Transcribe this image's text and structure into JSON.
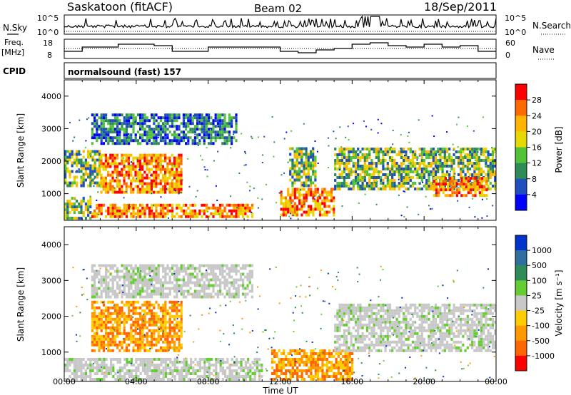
{
  "header": {
    "station": "Saskatoon (fitACF)",
    "beam": "Beam 02",
    "date": "18/Sep/2011"
  },
  "panels": {
    "nsky": {
      "left_label": "N.Sky",
      "right_label": "N.Search",
      "ticks": [
        "10^5",
        "10^0"
      ]
    },
    "freq": {
      "left_label_1": "Freq.",
      "left_label_2": "[MHz]",
      "right_label": "Nave",
      "left_ticks": [
        "18",
        "8"
      ],
      "right_ticks": [
        "60",
        "0"
      ]
    },
    "cpid": {
      "label": "CPID",
      "value": "normalsound (fast) 157"
    }
  },
  "colorbars": {
    "power": {
      "label": "Power [dB]",
      "ticks": [
        "28",
        "24",
        "20",
        "16",
        "12",
        "8",
        "4"
      ],
      "colors": [
        "#ff0000",
        "#ff6a00",
        "#ffb400",
        "#e6d800",
        "#52c237",
        "#2e8b57",
        "#1f4fbf",
        "#0000ff"
      ]
    },
    "velocity": {
      "label": "Velocity [m s⁻¹]",
      "ticks": [
        "1000",
        "500",
        "100",
        "25",
        "-25",
        "-100",
        "-500",
        "-1000"
      ],
      "colors": [
        "#0033cc",
        "#2f6f9f",
        "#2e8b57",
        "#66cc33",
        "#c8c8c8",
        "#ffcc00",
        "#ff9900",
        "#ff6600",
        "#ff0000"
      ]
    }
  },
  "chart_data": [
    {
      "type": "heatmap",
      "name": "Power",
      "ylabel": "Slant Range [km]",
      "yticks": [
        "4000",
        "3000",
        "2000",
        "1000"
      ],
      "ylim": [
        180,
        4500
      ],
      "xlim": [
        0,
        24
      ],
      "xticks": [
        "00:00",
        "04:00",
        "08:00",
        "12:00",
        "16:00",
        "20:00",
        "00:00"
      ],
      "xlabel": "Time UT",
      "regions": [
        {
          "t0": 0.0,
          "t1": 1.5,
          "r0": 200,
          "r1": 900,
          "level": "mid"
        },
        {
          "t0": 1.5,
          "t1": 10.5,
          "r0": 250,
          "r1": 650,
          "level": "high"
        },
        {
          "t0": 0.0,
          "t1": 2.0,
          "r0": 1200,
          "r1": 2300,
          "level": "mid"
        },
        {
          "t0": 2.0,
          "t1": 6.5,
          "r0": 1000,
          "r1": 2200,
          "level": "high"
        },
        {
          "t0": 1.5,
          "t1": 9.5,
          "r0": 2500,
          "r1": 3400,
          "level": "low"
        },
        {
          "t0": 12.0,
          "t1": 15.0,
          "r0": 300,
          "r1": 1100,
          "level": "high"
        },
        {
          "t0": 12.5,
          "t1": 14.0,
          "r0": 1200,
          "r1": 2400,
          "level": "mid"
        },
        {
          "t0": 15.0,
          "t1": 24.0,
          "r0": 1100,
          "r1": 2400,
          "level": "mid"
        },
        {
          "t0": 20.5,
          "t1": 23.5,
          "r0": 900,
          "r1": 1500,
          "level": "high"
        }
      ]
    },
    {
      "type": "heatmap",
      "name": "Velocity",
      "ylabel": "Slant Range [km]",
      "yticks": [
        "4000",
        "3000",
        "2000",
        "1000"
      ],
      "ylim": [
        180,
        4500
      ],
      "xlim": [
        0,
        24
      ],
      "xticks": [
        "00:00",
        "04:00",
        "08:00",
        "12:00",
        "16:00",
        "20:00",
        "00:00"
      ],
      "xlabel": "Time UT",
      "regions": [
        {
          "t0": 0.0,
          "t1": 11.0,
          "r0": 200,
          "r1": 800,
          "level": "ground"
        },
        {
          "t0": 1.5,
          "t1": 6.5,
          "r0": 1000,
          "r1": 2400,
          "level": "neg"
        },
        {
          "t0": 1.5,
          "t1": 10.5,
          "r0": 2500,
          "r1": 3400,
          "level": "ground"
        },
        {
          "t0": 11.5,
          "t1": 16.0,
          "r0": 200,
          "r1": 1000,
          "level": "neg"
        },
        {
          "t0": 15.0,
          "t1": 24.0,
          "r0": 1000,
          "r1": 2300,
          "level": "ground"
        }
      ]
    }
  ]
}
